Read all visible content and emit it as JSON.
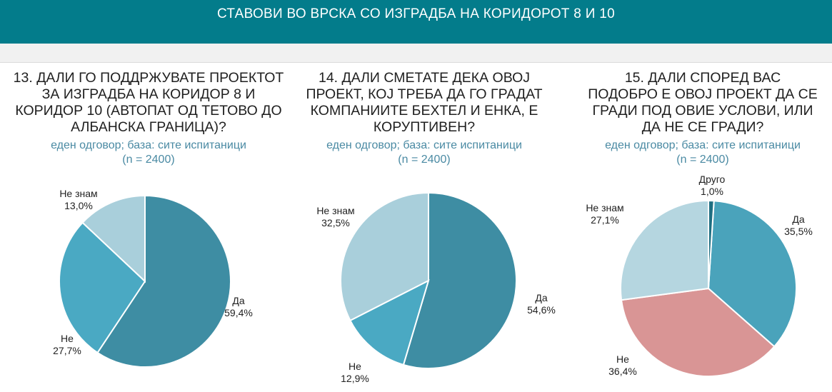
{
  "header": {
    "title": "СТАВОВИ ВО ВРСКА СО ИЗГРАДБА НА КОРИДОРОТ 8 И 10"
  },
  "chart_data": [
    {
      "type": "pie",
      "title": [
        "13. ДАЛИ ГО ПОДДРЖУВАТЕ ПРОЕКТОТ",
        "ЗА ИЗГРАДБА НА КОРИДОР 8 И",
        "КОРИДОР 10 (АВТОПАТ ОД ТЕТОВО ДО",
        "АЛБАНСКА ГРАНИЦА)?"
      ],
      "subtitle": [
        "еден одговор; база: сите испитаници",
        "(n = 2400)"
      ],
      "slices": [
        {
          "label": "Да",
          "value": 59.4,
          "value_label": "59,4%",
          "color": "#3e8da3"
        },
        {
          "label": "Не",
          "value": 27.7,
          "value_label": "27,7%",
          "color": "#4aa9c3"
        },
        {
          "label": "Не знам",
          "value": 13.0,
          "value_label": "13,0%",
          "color": "#a9cfdb"
        }
      ]
    },
    {
      "type": "pie",
      "title": [
        "14. ДАЛИ СМЕТАТЕ ДЕКА ОВОЈ",
        "ПРОЕКТ, КОЈ ТРЕБА ДА ГО ГРАДАТ",
        "КОМПАНИИТЕ БЕХТЕЛ И ЕНКА, Е",
        "КОРУПТИВЕН?"
      ],
      "subtitle": [
        "еден одговор; база: сите испитаници",
        "(n = 2400)"
      ],
      "slices": [
        {
          "label": "Да",
          "value": 54.6,
          "value_label": "54,6%",
          "color": "#3e8da3"
        },
        {
          "label": "Не",
          "value": 12.9,
          "value_label": "12,9%",
          "color": "#4aa9c3"
        },
        {
          "label": "Не знам",
          "value": 32.5,
          "value_label": "32,5%",
          "color": "#a9cfdb"
        }
      ]
    },
    {
      "type": "pie",
      "title": [
        "15. ДАЛИ СПОРЕД ВАС",
        "ПОДОБРО Е ОВОЈ ПРОЕКТ ДА СЕ",
        "ГРАДИ ПОД ОВИЕ УСЛОВИ, ИЛИ",
        "ДА НЕ СЕ ГРАДИ?"
      ],
      "subtitle": [
        "еден одговор; база: сите испитаници",
        "(n = 2400)"
      ],
      "slices": [
        {
          "label": "Да",
          "value": 35.5,
          "value_label": "35,5%",
          "color": "#4aa3bb"
        },
        {
          "label": "Не",
          "value": 36.4,
          "value_label": "36,4%",
          "color": "#d99595"
        },
        {
          "label": "Не знам",
          "value": 27.1,
          "value_label": "27,1%",
          "color": "#b5d6e0"
        },
        {
          "label": "Друго",
          "value": 1.0,
          "value_label": "1,0%",
          "color": "#1f6f82"
        }
      ]
    }
  ]
}
